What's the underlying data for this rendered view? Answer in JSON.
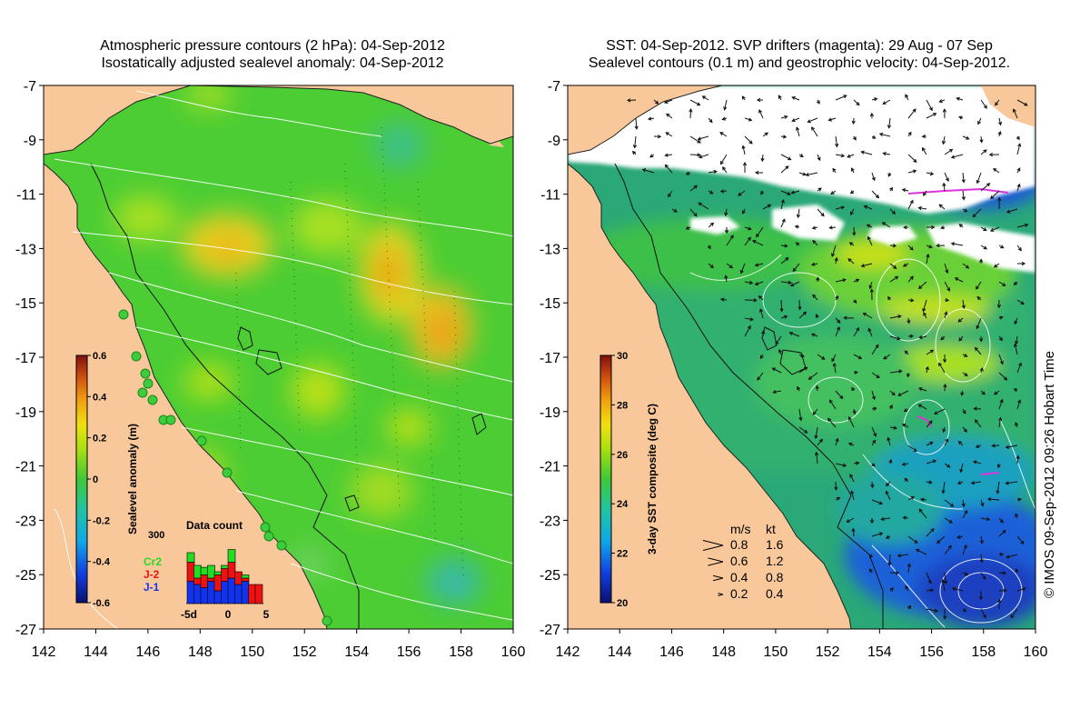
{
  "left_panel": {
    "title_line1": "Atmospheric pressure contours (2 hPa): 04-Sep-2012",
    "title_line2": "Isostatically adjusted sealevel anomaly: 04-Sep-2012",
    "colorbar_label": "Sealevel anomaly (m)",
    "colorbar_ticks": [
      "0.6",
      "0.4",
      "0.2",
      "0",
      "-0.2",
      "-0.4",
      "-0.6"
    ],
    "inset": {
      "title": "Data count",
      "y_max_label": "300",
      "x_labels": [
        "-5d",
        "0",
        "5"
      ],
      "legend": [
        {
          "label": "Cr2",
          "color": "#22dd22"
        },
        {
          "label": "J-2",
          "color": "#ee1111"
        },
        {
          "label": "J-1",
          "color": "#1133ee"
        }
      ],
      "bars": [
        {
          "j1": 0.35,
          "j2": 0.3,
          "cr2": 0.15
        },
        {
          "j1": 0.3,
          "j2": 0.1,
          "cr2": 0.2
        },
        {
          "j1": 0.25,
          "j2": 0.2,
          "cr2": 0.12
        },
        {
          "j1": 0.35,
          "j2": 0.05,
          "cr2": 0.2
        },
        {
          "j1": 0.2,
          "j2": 0.25,
          "cr2": 0.05
        },
        {
          "j1": 0.35,
          "j2": 0.2,
          "cr2": 0.05
        },
        {
          "j1": 0.4,
          "j2": 0.25,
          "cr2": 0.2
        },
        {
          "j1": 0.3,
          "j2": 0.2,
          "cr2": 0.0
        },
        {
          "j1": 0.35,
          "j2": 0.05,
          "cr2": 0.05
        },
        {
          "j1": 0.0,
          "j2": 0.3,
          "cr2": 0.0
        },
        {
          "j1": 0.0,
          "j2": 0.3,
          "cr2": 0.0
        }
      ]
    }
  },
  "right_panel": {
    "title_line1": "SST: 04-Sep-2012. SVP drifters (magenta): 29 Aug - 07 Sep",
    "title_line2": "Sealevel contours (0.1 m) and geostrophic velocity: 04-Sep-2012.",
    "colorbar_label": "3-day SST composite (deg C)",
    "colorbar_ticks": [
      "30",
      "28",
      "26",
      "24",
      "22",
      "20"
    ],
    "velocity_legend": {
      "header_ms": "m/s",
      "header_kt": "kt",
      "rows": [
        {
          "ms": "0.8",
          "kt": "1.6",
          "scale": 0.8
        },
        {
          "ms": "0.6",
          "kt": "1.2",
          "scale": 0.6
        },
        {
          "ms": "0.4",
          "kt": "0.8",
          "scale": 0.4
        },
        {
          "ms": "0.2",
          "kt": "0.4",
          "scale": 0.2
        }
      ]
    }
  },
  "axes": {
    "x_ticks": [
      "142",
      "144",
      "146",
      "148",
      "150",
      "152",
      "154",
      "156",
      "158",
      "160"
    ],
    "y_ticks": [
      "-7",
      "-9",
      "-11",
      "-13",
      "-15",
      "-17",
      "-19",
      "-21",
      "-23",
      "-25",
      "-27"
    ]
  },
  "credit": "© IMOS 09-Sep-2012 09:26 Hobart Time",
  "colors": {
    "land": "#f9c89a",
    "sla_base": "#4ccd34",
    "sst_base": "#2aa878",
    "sst_cold": "#1a4fd0",
    "cloud": "#ffffff"
  }
}
